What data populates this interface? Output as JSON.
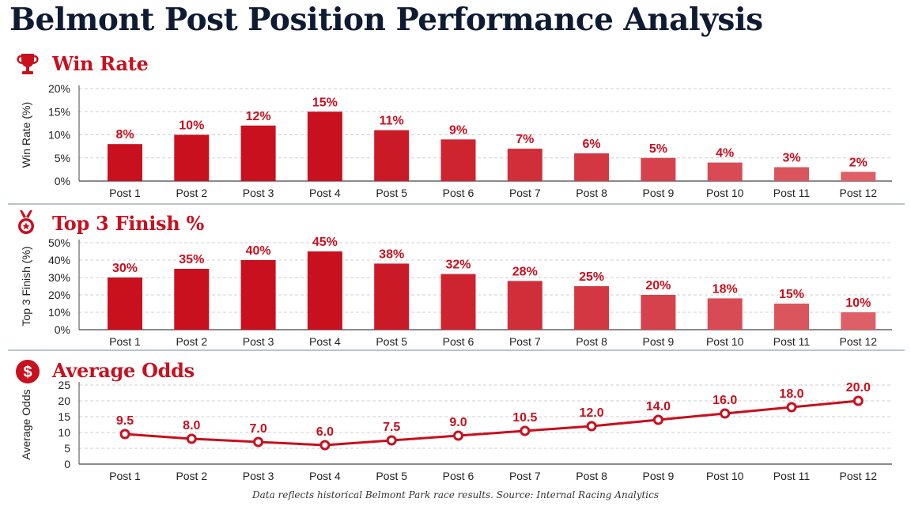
{
  "title": "Belmont Post Position Performance Analysis",
  "footnote": "Data reflects historical Belmont Park race results. Source: Internal Racing Analytics",
  "colors": {
    "title": "#0f1b33",
    "accent": "#c8101e",
    "line": "#c8101e",
    "grid": "#cfcfcf",
    "separator": "#b9c3cd"
  },
  "panels": [
    {
      "title": "Win Rate",
      "icon": "trophy-icon"
    },
    {
      "title": "Top 3 Finish %",
      "icon": "medal-icon"
    },
    {
      "title": "Average Odds",
      "icon": "dollar-icon"
    }
  ],
  "chart_data": [
    {
      "type": "bar",
      "title": "Win Rate",
      "ylabel": "Win Rate (%)",
      "categories": [
        "Post 1",
        "Post 2",
        "Post 3",
        "Post 4",
        "Post 5",
        "Post 6",
        "Post 7",
        "Post 8",
        "Post 9",
        "Post 10",
        "Post 11",
        "Post 12"
      ],
      "values": [
        8,
        10,
        12,
        15,
        11,
        9,
        7,
        6,
        5,
        4,
        3,
        2
      ],
      "value_labels": [
        "8%",
        "10%",
        "12%",
        "15%",
        "11%",
        "9%",
        "7%",
        "6%",
        "5%",
        "4%",
        "3%",
        "2%"
      ],
      "ylim": [
        0,
        20
      ],
      "yticks": [
        0,
        5,
        10,
        15,
        20
      ],
      "ytick_labels": [
        "0%",
        "5%",
        "10%",
        "15%",
        "20%"
      ],
      "grid": true,
      "colors": [
        "#c8101e",
        "#c8101e",
        "#c8101e",
        "#c8101e",
        "#cb1a27",
        "#cd2430",
        "#d02e39",
        "#d33842",
        "#d6424b",
        "#d84b54",
        "#db555d",
        "#de5f66"
      ]
    },
    {
      "type": "bar",
      "title": "Top 3 Finish %",
      "ylabel": "Top 3 Finish (%)",
      "categories": [
        "Post 1",
        "Post 2",
        "Post 3",
        "Post 4",
        "Post 5",
        "Post 6",
        "Post 7",
        "Post 8",
        "Post 9",
        "Post 10",
        "Post 11",
        "Post 12"
      ],
      "values": [
        30,
        35,
        40,
        45,
        38,
        32,
        28,
        25,
        20,
        18,
        15,
        10
      ],
      "value_labels": [
        "30%",
        "35%",
        "40%",
        "45%",
        "38%",
        "32%",
        "28%",
        "25%",
        "20%",
        "18%",
        "15%",
        "10%"
      ],
      "ylim": [
        0,
        50
      ],
      "yticks": [
        0,
        10,
        20,
        30,
        40,
        50
      ],
      "ytick_labels": [
        "0%",
        "10%",
        "20%",
        "30%",
        "40%",
        "50%"
      ],
      "grid": true,
      "colors": [
        "#c8101e",
        "#c8101e",
        "#c8101e",
        "#c8101e",
        "#cb1a27",
        "#cd2430",
        "#d02e39",
        "#d33842",
        "#d6424b",
        "#d84b54",
        "#db555d",
        "#de5f66"
      ]
    },
    {
      "type": "line",
      "title": "Average Odds",
      "ylabel": "Average Odds",
      "categories": [
        "Post 1",
        "Post 2",
        "Post 3",
        "Post 4",
        "Post 5",
        "Post 6",
        "Post 7",
        "Post 8",
        "Post 9",
        "Post 10",
        "Post 11",
        "Post 12"
      ],
      "values": [
        9.5,
        8.0,
        7.0,
        6.0,
        7.5,
        9.0,
        10.5,
        12.0,
        14.0,
        16.0,
        18.0,
        20.0
      ],
      "value_labels": [
        "9.5",
        "8.0",
        "7.0",
        "6.0",
        "7.5",
        "9.0",
        "10.5",
        "12.0",
        "14.0",
        "16.0",
        "18.0",
        "20.0"
      ],
      "ylim": [
        0,
        25
      ],
      "yticks": [
        0,
        5,
        10,
        15,
        20,
        25
      ],
      "ytick_labels": [
        "0",
        "5",
        "10",
        "15",
        "20",
        "25"
      ],
      "grid": true
    }
  ]
}
